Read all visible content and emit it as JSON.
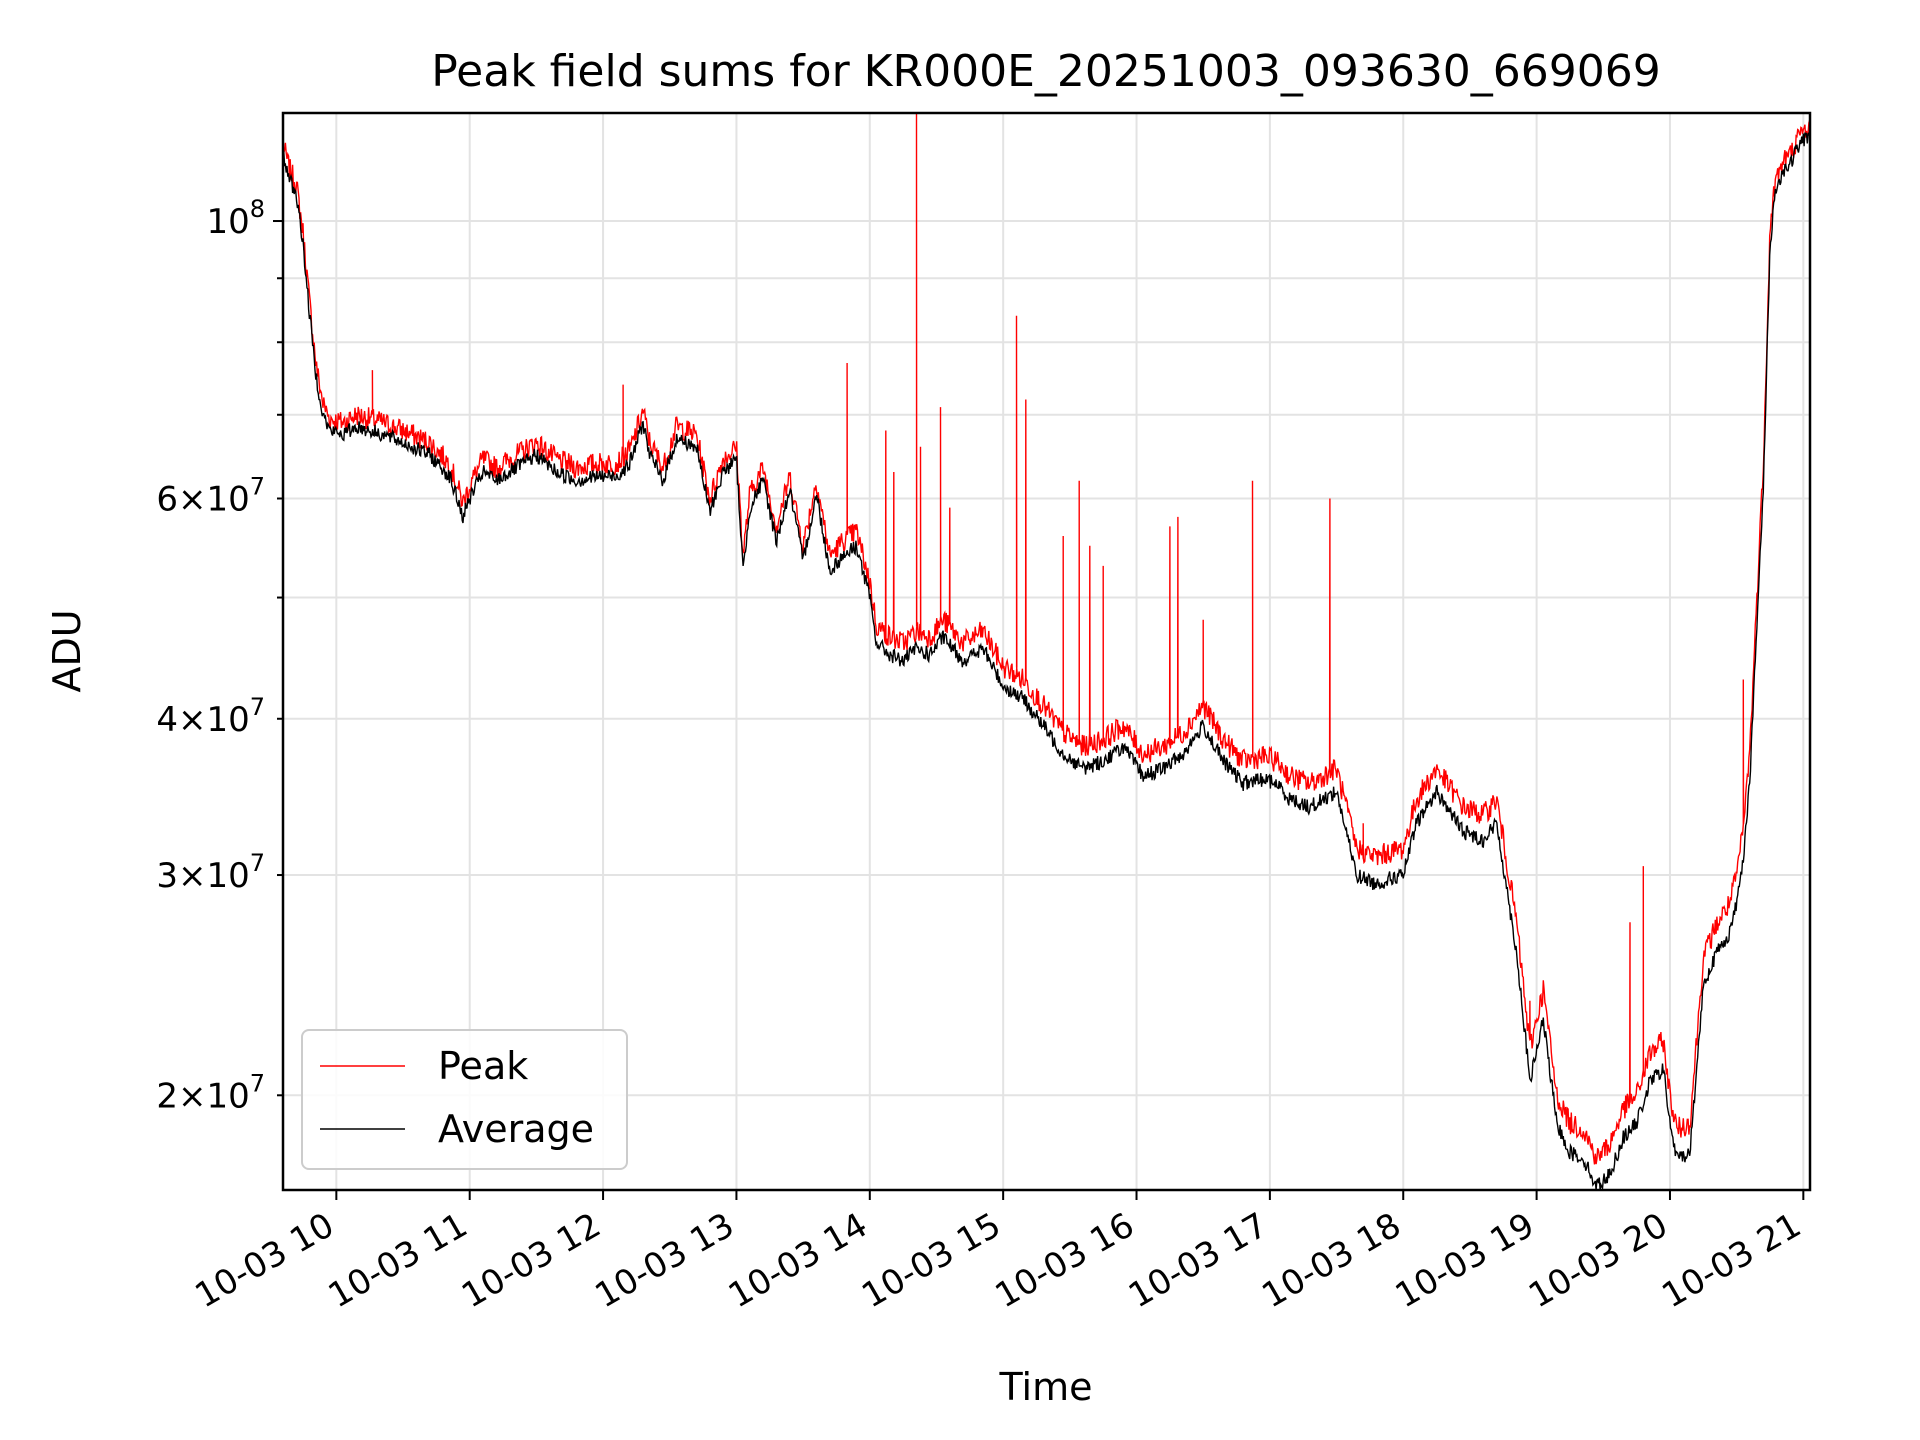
{
  "chart_data": {
    "type": "line",
    "title": "Peak field sums for KR000E_20251003_093630_669069",
    "xlabel": "Time",
    "ylabel": "ADU",
    "yscale": "log",
    "xlim": [
      9.6,
      21.05
    ],
    "ylim": [
      16800000,
      122000000
    ],
    "grid": true,
    "x_ticks": [
      {
        "value": 10,
        "label": "10-03 10"
      },
      {
        "value": 11,
        "label": "10-03 11"
      },
      {
        "value": 12,
        "label": "10-03 12"
      },
      {
        "value": 13,
        "label": "10-03 13"
      },
      {
        "value": 14,
        "label": "10-03 14"
      },
      {
        "value": 15,
        "label": "10-03 15"
      },
      {
        "value": 16,
        "label": "10-03 16"
      },
      {
        "value": 17,
        "label": "10-03 17"
      },
      {
        "value": 18,
        "label": "10-03 18"
      },
      {
        "value": 19,
        "label": "10-03 19"
      },
      {
        "value": 20,
        "label": "10-03 20"
      },
      {
        "value": 21,
        "label": "10-03 21"
      }
    ],
    "y_major_ticks": [
      {
        "value": 100000000,
        "base": "10",
        "exp": "8"
      }
    ],
    "y_minor_ticks": [
      {
        "value": 20000000,
        "mant": "2",
        "base": "10",
        "exp": "7"
      },
      {
        "value": 30000000,
        "mant": "3",
        "base": "10",
        "exp": "7"
      },
      {
        "value": 40000000,
        "mant": "4",
        "base": "10",
        "exp": "7"
      },
      {
        "value": 50000000,
        "mant": "",
        "base": "",
        "exp": ""
      },
      {
        "value": 60000000,
        "mant": "6",
        "base": "10",
        "exp": "7"
      },
      {
        "value": 70000000,
        "mant": "",
        "base": "",
        "exp": ""
      },
      {
        "value": 80000000,
        "mant": "",
        "base": "",
        "exp": ""
      },
      {
        "value": 90000000,
        "mant": "",
        "base": "",
        "exp": ""
      }
    ],
    "legend": {
      "location": "lower-left",
      "entries": [
        {
          "label": "Peak",
          "color": "#ff0000"
        },
        {
          "label": "Average",
          "color": "#000000"
        }
      ]
    },
    "series": [
      {
        "name": "Average",
        "color": "#000000",
        "x": [
          9.6,
          9.65,
          9.7,
          9.75,
          9.8,
          9.85,
          9.9,
          9.95,
          10.05,
          10.15,
          10.25,
          10.35,
          10.5,
          10.7,
          10.85,
          10.95,
          11.0,
          11.1,
          11.2,
          11.35,
          11.5,
          11.65,
          11.8,
          11.95,
          12.1,
          12.2,
          12.3,
          12.35,
          12.45,
          12.55,
          12.7,
          12.8,
          12.9,
          13.0,
          13.05,
          13.1,
          13.2,
          13.3,
          13.4,
          13.5,
          13.6,
          13.7,
          13.8,
          13.9,
          14.0,
          14.05,
          14.15,
          14.25,
          14.35,
          14.45,
          14.55,
          14.7,
          14.85,
          15.0,
          15.15,
          15.3,
          15.45,
          15.6,
          15.75,
          15.9,
          16.05,
          16.2,
          16.35,
          16.5,
          16.65,
          16.8,
          16.95,
          17.05,
          17.15,
          17.3,
          17.5,
          17.65,
          17.8,
          17.9,
          18.0,
          18.1,
          18.25,
          18.45,
          18.6,
          18.7,
          18.75,
          18.85,
          18.95,
          19.05,
          19.15,
          19.25,
          19.35,
          19.45,
          19.55,
          19.65,
          19.75,
          19.85,
          19.95,
          20.0,
          20.05,
          20.15,
          20.25,
          20.35,
          20.45,
          20.5,
          20.55,
          20.6,
          20.65,
          20.7,
          20.75,
          20.78,
          20.82,
          20.86,
          20.9,
          20.95,
          21.0,
          21.05
        ],
        "y": [
          113000000,
          108000000,
          105000000,
          96000000,
          84000000,
          75000000,
          70000000,
          68000000,
          67500000,
          68500000,
          68000000,
          67500000,
          66500000,
          65000000,
          62500000,
          58000000,
          60000000,
          63000000,
          62000000,
          63500000,
          65000000,
          63000000,
          62000000,
          62500000,
          62500000,
          64000000,
          69000000,
          65000000,
          62000000,
          67000000,
          66000000,
          58500000,
          63000000,
          64500000,
          52500000,
          59000000,
          62000000,
          55500000,
          61000000,
          53500000,
          60500000,
          52500000,
          54000000,
          55000000,
          50000000,
          46000000,
          45000000,
          44500000,
          45500000,
          45000000,
          46500000,
          44500000,
          45500000,
          42500000,
          41500000,
          39500000,
          37500000,
          36500000,
          37000000,
          38000000,
          36000000,
          36500000,
          37500000,
          39500000,
          37000000,
          35500000,
          35800000,
          35500000,
          34500000,
          34000000,
          35000000,
          30000000,
          29500000,
          29800000,
          30000000,
          33000000,
          35000000,
          32500000,
          32000000,
          33000000,
          30500000,
          26000000,
          20500000,
          23000000,
          19000000,
          18000000,
          17800000,
          16900000,
          17300000,
          18500000,
          19000000,
          20500000,
          21000000,
          19000000,
          17800000,
          18000000,
          24500000,
          26000000,
          27000000,
          28500000,
          31000000,
          36000000,
          47000000,
          61000000,
          95000000,
          104000000,
          108000000,
          110000000,
          111000000,
          114000000,
          116000000,
          117000000
        ]
      },
      {
        "name": "Peak",
        "color": "#ff0000",
        "x": [
          9.6,
          9.65,
          9.7,
          9.75,
          9.8,
          9.85,
          9.9,
          9.95,
          10.05,
          10.15,
          10.25,
          10.35,
          10.5,
          10.7,
          10.85,
          10.95,
          11.0,
          11.1,
          11.2,
          11.35,
          11.5,
          11.65,
          11.8,
          11.95,
          12.1,
          12.2,
          12.3,
          12.35,
          12.45,
          12.55,
          12.7,
          12.8,
          12.9,
          13.0,
          13.05,
          13.1,
          13.2,
          13.3,
          13.4,
          13.5,
          13.6,
          13.7,
          13.8,
          13.9,
          14.0,
          14.05,
          14.15,
          14.25,
          14.35,
          14.45,
          14.55,
          14.7,
          14.85,
          15.0,
          15.15,
          15.3,
          15.45,
          15.6,
          15.75,
          15.9,
          16.05,
          16.2,
          16.35,
          16.5,
          16.65,
          16.8,
          16.95,
          17.05,
          17.15,
          17.3,
          17.5,
          17.65,
          17.8,
          17.9,
          18.0,
          18.1,
          18.25,
          18.45,
          18.6,
          18.7,
          18.75,
          18.85,
          18.95,
          19.05,
          19.15,
          19.25,
          19.35,
          19.45,
          19.55,
          19.65,
          19.75,
          19.85,
          19.95,
          20.0,
          20.05,
          20.15,
          20.25,
          20.35,
          20.45,
          20.5,
          20.55,
          20.6,
          20.65,
          20.7,
          20.75,
          20.78,
          20.82,
          20.86,
          20.9,
          20.95,
          21.0,
          21.05
        ],
        "y": [
          115000000,
          110000000,
          107000000,
          98000000,
          86000000,
          76500000,
          71500000,
          69500000,
          69000000,
          70000000,
          69500000,
          69000000,
          68000000,
          66500000,
          64000000,
          59500000,
          61500000,
          64500000,
          63500000,
          65000000,
          66500000,
          64500000,
          63500000,
          64000000,
          64000000,
          65500000,
          70500000,
          66500000,
          63500000,
          68500000,
          67500000,
          60000000,
          64500000,
          66000000,
          54000000,
          60500000,
          63500000,
          57000000,
          62500000,
          55000000,
          62000000,
          54000000,
          55500000,
          56500000,
          51500000,
          47500000,
          46500000,
          46000000,
          47000000,
          46500000,
          48000000,
          46000000,
          47000000,
          44000000,
          43000000,
          41000000,
          39000000,
          38000000,
          38500000,
          39500000,
          37500000,
          38000000,
          39000000,
          41000000,
          38500000,
          37000000,
          37300000,
          37000000,
          36000000,
          35500000,
          36500000,
          31500000,
          31000000,
          31300000,
          31500000,
          34500000,
          36500000,
          34000000,
          33500000,
          34500000,
          32000000,
          27500000,
          21800000,
          24300000,
          20000000,
          19000000,
          18800000,
          17800000,
          18300000,
          19500000,
          20000000,
          21600000,
          22100000,
          20000000,
          18800000,
          19000000,
          25800000,
          27400000,
          28500000,
          30000000,
          32700000,
          38000000,
          49500000,
          64000000,
          98000000,
          106000000,
          110000000,
          112000000,
          113000000,
          116000000,
          118000000,
          119000000
        ]
      }
    ],
    "peak_spikes": [
      {
        "x": 10.27,
        "y": 76000000
      },
      {
        "x": 12.15,
        "y": 74000000
      },
      {
        "x": 13.83,
        "y": 77000000
      },
      {
        "x": 14.12,
        "y": 68000000
      },
      {
        "x": 14.18,
        "y": 63000000
      },
      {
        "x": 14.35,
        "y": 122000000
      },
      {
        "x": 14.38,
        "y": 66000000
      },
      {
        "x": 14.53,
        "y": 71000000
      },
      {
        "x": 14.6,
        "y": 59000000
      },
      {
        "x": 15.1,
        "y": 84000000
      },
      {
        "x": 15.17,
        "y": 72000000
      },
      {
        "x": 15.45,
        "y": 56000000
      },
      {
        "x": 15.57,
        "y": 62000000
      },
      {
        "x": 15.65,
        "y": 55000000
      },
      {
        "x": 15.75,
        "y": 53000000
      },
      {
        "x": 16.25,
        "y": 57000000
      },
      {
        "x": 16.31,
        "y": 58000000
      },
      {
        "x": 16.5,
        "y": 48000000
      },
      {
        "x": 16.87,
        "y": 62000000
      },
      {
        "x": 17.45,
        "y": 60000000
      },
      {
        "x": 17.7,
        "y": 33000000
      },
      {
        "x": 18.95,
        "y": 23800000
      },
      {
        "x": 19.7,
        "y": 27500000
      },
      {
        "x": 19.8,
        "y": 30500000
      },
      {
        "x": 20.55,
        "y": 43000000
      }
    ]
  }
}
